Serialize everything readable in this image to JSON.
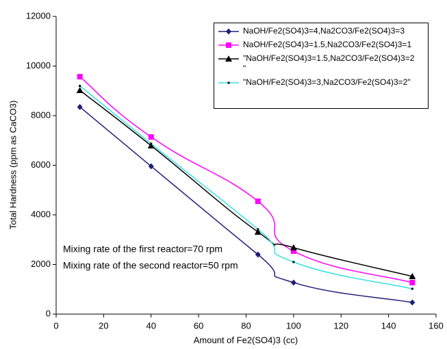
{
  "chart_data": {
    "type": "line",
    "x_label": "Amount of Fe2(SO4)3 (cc)",
    "y_label": "Total Hardness (ppm as CaCO3)",
    "annotations": [
      "Mixing rate of the first reactor=70 rpm",
      "Mixing rate of the second reactor=50 rpm"
    ],
    "x": [
      10,
      40,
      85,
      100,
      150
    ],
    "series": [
      {
        "name": "NaOH/Fe2(SO4)3=4,Na2CO3/Fe2(SO4)3=3",
        "color": "#1f1f7a",
        "marker": "diamond",
        "values": [
          8350,
          5960,
          2400,
          1270,
          470
        ]
      },
      {
        "name": "NaOH/Fe2(SO4)3=1.5,Na2CO3/Fe2(SO4)3=1",
        "color": "#ff00ff",
        "marker": "square",
        "values": [
          9570,
          7140,
          4550,
          2540,
          1270
        ]
      },
      {
        "name": "\"NaOH/Fe2(SO4)3=1.5,Na2CO3/Fe2(SO4)3=2\n\"",
        "color": "#000000",
        "marker": "triangle",
        "values": [
          9020,
          6790,
          3310,
          2680,
          1520
        ]
      },
      {
        "name": "\"NaOH/Fe2(SO4)3=3,Na2CO3/Fe2(SO4)3=2\"",
        "color": "#33e0e0",
        "marker": "dot",
        "values": [
          9200,
          6870,
          3420,
          2100,
          1020
        ]
      }
    ],
    "xlim": [
      0,
      160
    ],
    "xticks": [
      0,
      20,
      40,
      60,
      80,
      100,
      120,
      140,
      160
    ],
    "ylim": [
      0,
      12000
    ],
    "yticks": [
      0,
      2000,
      4000,
      6000,
      8000,
      10000,
      12000
    ],
    "grid": false
  }
}
